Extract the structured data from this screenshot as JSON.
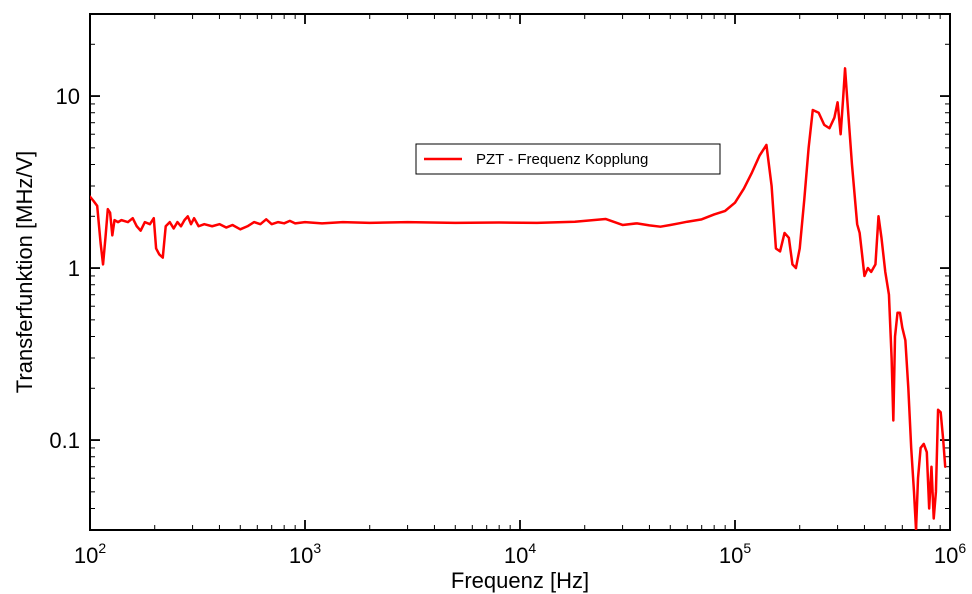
{
  "chart_data": {
    "type": "line",
    "xlabel": "Frequenz [Hz]",
    "ylabel": "Transferfunktion [MHz/V]",
    "x_scale": "log",
    "y_scale": "log",
    "xlim": [
      100,
      1000000
    ],
    "ylim": [
      0.03,
      30
    ],
    "grid": false,
    "legend_position": "top-center",
    "x_ticks": [
      {
        "base": "10",
        "exp": "2",
        "value": 100
      },
      {
        "base": "10",
        "exp": "3",
        "value": 1000
      },
      {
        "base": "10",
        "exp": "4",
        "value": 10000
      },
      {
        "base": "10",
        "exp": "5",
        "value": 100000
      },
      {
        "base": "10",
        "exp": "6",
        "value": 1000000
      }
    ],
    "y_ticks": [
      {
        "label": "0.1",
        "value": 0.1
      },
      {
        "label": "1",
        "value": 1
      },
      {
        "label": "10",
        "value": 10
      }
    ],
    "series": [
      {
        "name": "PZT - Frequenz Kopplung",
        "color": "#ff0000",
        "points": [
          [
            100,
            2.6
          ],
          [
            104,
            2.45
          ],
          [
            108,
            2.3
          ],
          [
            112,
            1.4
          ],
          [
            115,
            1.05
          ],
          [
            118,
            1.5
          ],
          [
            121,
            2.2
          ],
          [
            124,
            2.1
          ],
          [
            127,
            1.55
          ],
          [
            130,
            1.9
          ],
          [
            135,
            1.85
          ],
          [
            140,
            1.9
          ],
          [
            150,
            1.85
          ],
          [
            158,
            1.95
          ],
          [
            165,
            1.75
          ],
          [
            172,
            1.65
          ],
          [
            180,
            1.85
          ],
          [
            190,
            1.8
          ],
          [
            198,
            1.95
          ],
          [
            203,
            1.3
          ],
          [
            210,
            1.2
          ],
          [
            218,
            1.15
          ],
          [
            225,
            1.75
          ],
          [
            235,
            1.85
          ],
          [
            245,
            1.7
          ],
          [
            255,
            1.85
          ],
          [
            265,
            1.75
          ],
          [
            275,
            1.9
          ],
          [
            285,
            2.0
          ],
          [
            295,
            1.8
          ],
          [
            305,
            1.95
          ],
          [
            320,
            1.75
          ],
          [
            340,
            1.8
          ],
          [
            370,
            1.75
          ],
          [
            400,
            1.8
          ],
          [
            430,
            1.72
          ],
          [
            460,
            1.78
          ],
          [
            500,
            1.68
          ],
          [
            540,
            1.75
          ],
          [
            580,
            1.85
          ],
          [
            620,
            1.8
          ],
          [
            660,
            1.92
          ],
          [
            700,
            1.8
          ],
          [
            750,
            1.85
          ],
          [
            800,
            1.82
          ],
          [
            850,
            1.88
          ],
          [
            900,
            1.82
          ],
          [
            1000,
            1.85
          ],
          [
            1200,
            1.82
          ],
          [
            1500,
            1.85
          ],
          [
            2000,
            1.83
          ],
          [
            3000,
            1.85
          ],
          [
            5000,
            1.83
          ],
          [
            8000,
            1.84
          ],
          [
            12000,
            1.83
          ],
          [
            18000,
            1.86
          ],
          [
            25000,
            1.93
          ],
          [
            30000,
            1.78
          ],
          [
            35000,
            1.82
          ],
          [
            40000,
            1.77
          ],
          [
            45000,
            1.74
          ],
          [
            50000,
            1.78
          ],
          [
            55000,
            1.82
          ],
          [
            60000,
            1.86
          ],
          [
            70000,
            1.92
          ],
          [
            80000,
            2.05
          ],
          [
            90000,
            2.15
          ],
          [
            100000,
            2.4
          ],
          [
            110000,
            2.9
          ],
          [
            120000,
            3.6
          ],
          [
            130000,
            4.5
          ],
          [
            140000,
            5.2
          ],
          [
            148000,
            3.0
          ],
          [
            155000,
            1.3
          ],
          [
            162000,
            1.25
          ],
          [
            170000,
            1.6
          ],
          [
            178000,
            1.5
          ],
          [
            185000,
            1.05
          ],
          [
            192000,
            1.0
          ],
          [
            200000,
            1.3
          ],
          [
            210000,
            2.5
          ],
          [
            220000,
            5.0
          ],
          [
            230000,
            8.3
          ],
          [
            245000,
            8.0
          ],
          [
            260000,
            6.8
          ],
          [
            275000,
            6.5
          ],
          [
            290000,
            7.5
          ],
          [
            300000,
            9.2
          ],
          [
            310000,
            6.0
          ],
          [
            318000,
            9.5
          ],
          [
            325000,
            14.5
          ],
          [
            335000,
            8.5
          ],
          [
            350000,
            4.0
          ],
          [
            370000,
            1.8
          ],
          [
            380000,
            1.6
          ],
          [
            390000,
            1.2
          ],
          [
            400000,
            0.9
          ],
          [
            415000,
            1.0
          ],
          [
            430000,
            0.95
          ],
          [
            450000,
            1.05
          ],
          [
            465000,
            2.0
          ],
          [
            480000,
            1.5
          ],
          [
            500000,
            0.95
          ],
          [
            520000,
            0.7
          ],
          [
            535000,
            0.3
          ],
          [
            545000,
            0.13
          ],
          [
            555000,
            0.4
          ],
          [
            570000,
            0.55
          ],
          [
            585000,
            0.55
          ],
          [
            600000,
            0.45
          ],
          [
            620000,
            0.38
          ],
          [
            640000,
            0.2
          ],
          [
            660000,
            0.09
          ],
          [
            680000,
            0.05
          ],
          [
            695000,
            0.03
          ],
          [
            710000,
            0.06
          ],
          [
            730000,
            0.09
          ],
          [
            755000,
            0.095
          ],
          [
            780000,
            0.085
          ],
          [
            800000,
            0.04
          ],
          [
            820000,
            0.07
          ],
          [
            840000,
            0.035
          ],
          [
            860000,
            0.05
          ],
          [
            880000,
            0.15
          ],
          [
            905000,
            0.145
          ],
          [
            930000,
            0.1
          ],
          [
            950000,
            0.07
          ]
        ]
      }
    ]
  }
}
